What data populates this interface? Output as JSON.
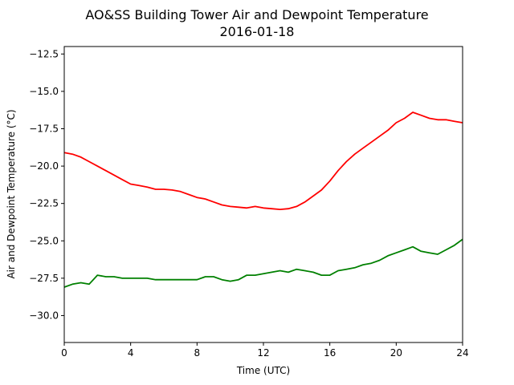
{
  "chart_data": {
    "type": "line",
    "title": "AO&SS Building Tower Air and Dewpoint Temperature",
    "subtitle": "2016-01-18",
    "xlabel": "Time (UTC)",
    "ylabel": "Air and Dewpoint Temperature (°C)",
    "xlim": [
      0,
      24
    ],
    "ylim": [
      -31.8,
      -12.0
    ],
    "xticks": [
      0,
      4,
      8,
      12,
      16,
      20,
      24
    ],
    "xtick_labels": [
      "0",
      "4",
      "8",
      "12",
      "16",
      "20",
      "24"
    ],
    "yticks": [
      -30.0,
      -27.5,
      -25.0,
      -22.5,
      -20.0,
      -17.5,
      -15.0,
      -12.5
    ],
    "ytick_labels": [
      "−30.0",
      "−27.5",
      "−25.0",
      "−22.5",
      "−20.0",
      "−17.5",
      "−15.0",
      "−12.5"
    ],
    "grid": false,
    "legend": "none",
    "series": [
      {
        "color": "#ff0000",
        "x": [
          0,
          0.5,
          1,
          1.5,
          2,
          2.5,
          3,
          3.5,
          4,
          4.5,
          5,
          5.5,
          6,
          6.5,
          7,
          7.5,
          8,
          8.5,
          9,
          9.5,
          10,
          10.5,
          11,
          11.5,
          12,
          12.5,
          13,
          13.5,
          14,
          14.5,
          15,
          15.5,
          16,
          16.5,
          17,
          17.5,
          18,
          18.5,
          19,
          19.5,
          20,
          20.5,
          21,
          21.5,
          22,
          22.5,
          23,
          23.5,
          24
        ],
        "y": [
          -19.1,
          -19.2,
          -19.4,
          -19.7,
          -20.0,
          -20.3,
          -20.6,
          -20.9,
          -21.2,
          -21.3,
          -21.4,
          -21.55,
          -21.55,
          -21.6,
          -21.7,
          -21.9,
          -22.1,
          -22.2,
          -22.4,
          -22.6,
          -22.7,
          -22.75,
          -22.8,
          -22.7,
          -22.8,
          -22.85,
          -22.9,
          -22.85,
          -22.7,
          -22.4,
          -22.0,
          -21.6,
          -21.0,
          -20.3,
          -19.7,
          -19.2,
          -18.8,
          -18.4,
          -18.0,
          -17.6,
          -17.1,
          -16.8,
          -16.4,
          -16.6,
          -16.8,
          -16.9,
          -16.9,
          -17.0,
          -17.1
        ]
      },
      {
        "color": "#008000",
        "x": [
          0,
          0.5,
          1,
          1.5,
          2,
          2.5,
          3,
          3.5,
          4,
          4.5,
          5,
          5.5,
          6,
          6.5,
          7,
          7.5,
          8,
          8.5,
          9,
          9.5,
          10,
          10.5,
          11,
          11.5,
          12,
          12.5,
          13,
          13.5,
          14,
          14.5,
          15,
          15.5,
          16,
          16.5,
          17,
          17.5,
          18,
          18.5,
          19,
          19.5,
          20,
          20.5,
          21,
          21.5,
          22,
          22.5,
          23,
          23.5,
          24
        ],
        "y": [
          -28.1,
          -27.9,
          -27.8,
          -27.9,
          -27.3,
          -27.4,
          -27.4,
          -27.5,
          -27.5,
          -27.5,
          -27.5,
          -27.6,
          -27.6,
          -27.6,
          -27.6,
          -27.6,
          -27.6,
          -27.4,
          -27.4,
          -27.6,
          -27.7,
          -27.6,
          -27.3,
          -27.3,
          -27.2,
          -27.1,
          -27.0,
          -27.1,
          -26.9,
          -27.0,
          -27.1,
          -27.3,
          -27.3,
          -27.0,
          -26.9,
          -26.8,
          -26.6,
          -26.5,
          -26.3,
          -26.0,
          -25.8,
          -25.6,
          -25.4,
          -25.7,
          -25.8,
          -25.9,
          -25.6,
          -25.3,
          -24.9
        ]
      }
    ]
  }
}
